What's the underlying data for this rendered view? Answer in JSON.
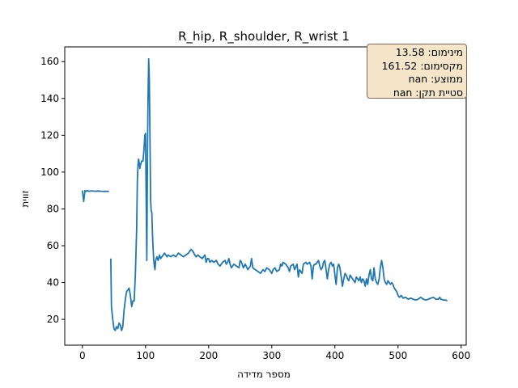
{
  "chart_data": {
    "type": "line",
    "title": "R_hip, R_shoulder, R_wrist 1",
    "xlabel": "מספר מדידה",
    "ylabel": "זווית",
    "xlim": [
      -28,
      608
    ],
    "ylim": [
      6,
      168
    ],
    "xticks": [
      0,
      100,
      200,
      300,
      400,
      500,
      600
    ],
    "yticks": [
      20,
      40,
      60,
      80,
      100,
      120,
      140,
      160
    ],
    "grid": false,
    "line_color": "#1f77b4",
    "stats_box": {
      "lines": [
        "מינימום: 13.58",
        "מקסימום: 161.52",
        "ממוצע: nan",
        "סטיית תקן: nan"
      ],
      "placement": "top-right"
    },
    "series": [
      {
        "segments": [
          [
            [
              0,
              90
            ],
            [
              2,
              84
            ],
            [
              4,
              90
            ],
            [
              6,
              89.5
            ],
            [
              8,
              90
            ],
            [
              10,
              89.6
            ],
            [
              15,
              89.8
            ],
            [
              20,
              89.6
            ],
            [
              25,
              89.7
            ],
            [
              30,
              89.6
            ],
            [
              35,
              89.5
            ],
            [
              40,
              89.6
            ],
            [
              42,
              89.5
            ]
          ],
          [
            [
              45,
              53
            ],
            [
              46,
              27
            ],
            [
              48,
              20
            ],
            [
              50,
              15
            ],
            [
              52,
              14
            ],
            [
              54,
              16
            ],
            [
              56,
              15
            ],
            [
              58,
              18
            ],
            [
              60,
              17
            ],
            [
              62,
              14
            ],
            [
              64,
              16
            ],
            [
              66,
              25
            ],
            [
              68,
              31
            ],
            [
              70,
              35
            ],
            [
              72,
              36
            ],
            [
              74,
              37
            ],
            [
              76,
              33
            ],
            [
              78,
              27
            ],
            [
              80,
              30
            ],
            [
              82,
              30
            ],
            [
              84,
              45
            ],
            [
              86,
              70
            ],
            [
              87,
              95
            ],
            [
              88,
              104
            ],
            [
              89,
              107
            ],
            [
              90,
              105
            ],
            [
              91,
              102
            ],
            [
              92,
              104
            ],
            [
              94,
              106
            ],
            [
              96,
              106
            ],
            [
              97,
              110
            ],
            [
              98,
              115
            ],
            [
              99,
              120
            ],
            [
              100,
              121
            ],
            [
              101,
              86
            ],
            [
              102,
              52
            ],
            [
              103,
              110
            ],
            [
              104,
              140
            ],
            [
              105,
              161.5
            ],
            [
              106,
              150
            ],
            [
              107,
              118
            ],
            [
              108,
              85
            ],
            [
              109,
              79
            ],
            [
              110,
              78
            ],
            [
              111,
              66
            ],
            [
              112,
              58
            ],
            [
              113,
              52
            ],
            [
              114,
              49
            ],
            [
              115,
              47
            ],
            [
              116,
              52
            ],
            [
              118,
              54
            ],
            [
              120,
              52
            ],
            [
              122,
              55
            ],
            [
              124,
              53
            ],
            [
              126,
              54
            ],
            [
              128,
              55
            ],
            [
              130,
              56
            ],
            [
              132,
              55
            ],
            [
              134,
              54
            ],
            [
              136,
              55
            ],
            [
              140,
              54
            ],
            [
              144,
              55
            ],
            [
              148,
              54
            ],
            [
              152,
              56
            ],
            [
              156,
              55
            ],
            [
              160,
              54
            ],
            [
              164,
              55
            ],
            [
              168,
              56
            ],
            [
              170,
              57
            ],
            [
              172,
              58
            ],
            [
              175,
              57
            ],
            [
              178,
              55
            ],
            [
              180,
              54
            ],
            [
              183,
              55
            ],
            [
              186,
              54
            ],
            [
              190,
              53
            ],
            [
              194,
              55
            ],
            [
              196,
              51
            ],
            [
              198,
              53
            ],
            [
              200,
              53
            ],
            [
              202,
              51
            ],
            [
              205,
              52
            ],
            [
              208,
              51
            ],
            [
              212,
              52
            ],
            [
              215,
              50
            ],
            [
              218,
              49
            ],
            [
              222,
              51
            ],
            [
              226,
              52
            ],
            [
              228,
              50
            ],
            [
              230,
              51
            ],
            [
              232,
              53
            ],
            [
              234,
              50
            ],
            [
              236,
              48
            ],
            [
              240,
              50
            ],
            [
              244,
              49
            ],
            [
              248,
              48
            ],
            [
              250,
              52
            ],
            [
              252,
              51
            ],
            [
              255,
              48
            ],
            [
              258,
              50
            ],
            [
              262,
              47
            ],
            [
              266,
              49
            ],
            [
              268,
              53
            ],
            [
              270,
              48
            ],
            [
              274,
              47
            ],
            [
              278,
              46
            ],
            [
              282,
              45
            ],
            [
              286,
              47
            ],
            [
              289,
              46
            ],
            [
              292,
              48
            ],
            [
              296,
              47
            ],
            [
              300,
              45
            ],
            [
              302,
              47
            ],
            [
              305,
              48
            ],
            [
              308,
              46
            ],
            [
              312,
              47
            ],
            [
              314,
              50
            ],
            [
              316,
              49
            ],
            [
              318,
              51
            ],
            [
              322,
              50
            ],
            [
              326,
              48
            ],
            [
              328,
              46
            ],
            [
              330,
              49
            ],
            [
              334,
              50
            ],
            [
              336,
              47
            ],
            [
              340,
              50
            ],
            [
              342,
              43
            ],
            [
              344,
              47
            ],
            [
              346,
              46
            ],
            [
              348,
              45
            ],
            [
              350,
              50
            ],
            [
              354,
              51
            ],
            [
              356,
              50
            ],
            [
              360,
              51
            ],
            [
              362,
              49
            ],
            [
              364,
              42
            ],
            [
              366,
              49
            ],
            [
              368,
              50
            ],
            [
              370,
              50
            ],
            [
              372,
              51
            ],
            [
              374,
              52
            ],
            [
              376,
              49
            ],
            [
              378,
              47
            ],
            [
              380,
              48
            ],
            [
              382,
              51
            ],
            [
              384,
              52
            ],
            [
              386,
              47
            ],
            [
              388,
              42
            ],
            [
              390,
              47
            ],
            [
              392,
              50
            ],
            [
              394,
              51
            ],
            [
              396,
              49
            ],
            [
              398,
              50
            ],
            [
              400,
              44
            ],
            [
              402,
              39
            ],
            [
              404,
              48
            ],
            [
              406,
              50
            ],
            [
              408,
              48
            ],
            [
              410,
              43
            ],
            [
              412,
              38
            ],
            [
              414,
              42
            ],
            [
              416,
              45
            ],
            [
              418,
              44
            ],
            [
              420,
              42
            ],
            [
              422,
              41
            ],
            [
              424,
              44
            ],
            [
              426,
              43
            ],
            [
              428,
              42
            ],
            [
              430,
              41
            ],
            [
              432,
              40
            ],
            [
              434,
              43
            ],
            [
              436,
              42
            ],
            [
              438,
              41
            ],
            [
              440,
              43
            ],
            [
              442,
              40
            ],
            [
              444,
              42
            ],
            [
              446,
              41
            ],
            [
              448,
              38
            ],
            [
              450,
              42
            ],
            [
              452,
              39
            ],
            [
              454,
              44
            ],
            [
              456,
              47
            ],
            [
              458,
              42
            ],
            [
              460,
              41
            ],
            [
              462,
              48
            ],
            [
              464,
              42
            ],
            [
              466,
              40
            ],
            [
              468,
              39
            ],
            [
              470,
              42
            ],
            [
              472,
              48
            ],
            [
              474,
              52
            ],
            [
              476,
              48
            ],
            [
              478,
              42
            ],
            [
              480,
              40
            ],
            [
              482,
              39
            ],
            [
              484,
              41
            ],
            [
              486,
              40
            ],
            [
              488,
              39
            ],
            [
              490,
              40
            ],
            [
              492,
              39
            ],
            [
              494,
              37
            ],
            [
              496,
              36
            ],
            [
              498,
              35
            ],
            [
              500,
              33
            ],
            [
              502,
              32
            ],
            [
              505,
              33
            ],
            [
              508,
              31.5
            ],
            [
              512,
              32
            ],
            [
              516,
              31
            ],
            [
              520,
              31.5
            ],
            [
              524,
              31
            ],
            [
              528,
              30.5
            ],
            [
              532,
              31
            ],
            [
              536,
              32
            ],
            [
              540,
              31
            ],
            [
              544,
              30.5
            ],
            [
              548,
              31
            ],
            [
              552,
              31.5
            ],
            [
              556,
              32
            ],
            [
              560,
              31
            ],
            [
              564,
              31
            ],
            [
              566,
              32
            ],
            [
              568,
              31
            ],
            [
              572,
              30.5
            ],
            [
              576,
              30.5
            ],
            [
              578,
              30
            ]
          ]
        ]
      }
    ]
  }
}
